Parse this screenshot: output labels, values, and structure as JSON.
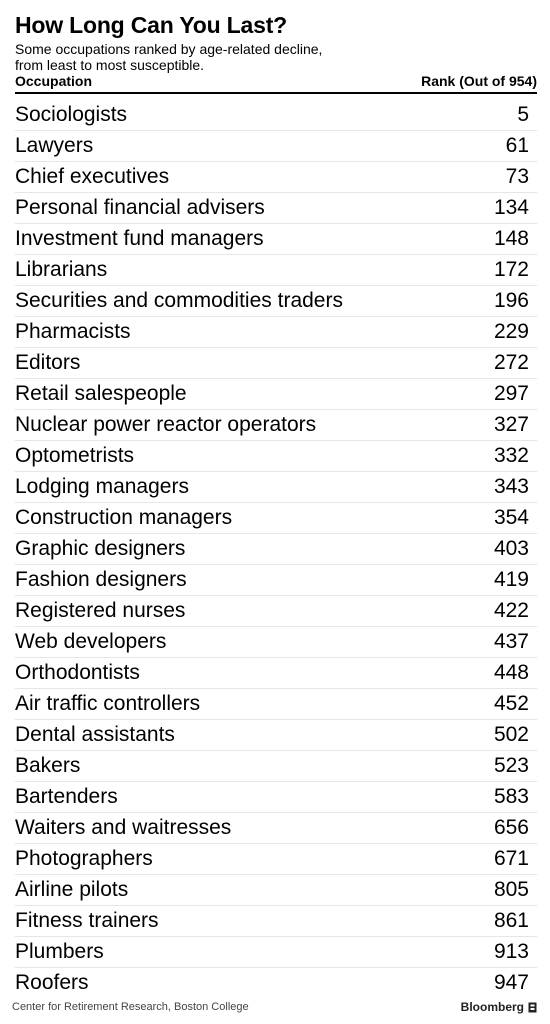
{
  "header": {
    "title": "How Long Can You Last?",
    "subtitle_line1": "Some occupations ranked by age-related decline,",
    "subtitle_line2": "from least to most susceptible.",
    "col_occupation": "Occupation",
    "col_rank": "Rank (Out of 954)"
  },
  "chart_data": {
    "type": "table",
    "title": "How Long Can You Last?",
    "subtitle": "Some occupations ranked by age-related decline, from least to most susceptible.",
    "columns": [
      "Occupation",
      "Rank (Out of 954)"
    ],
    "rows": [
      {
        "occupation": "Sociologists",
        "rank": "5"
      },
      {
        "occupation": "Lawyers",
        "rank": "61"
      },
      {
        "occupation": "Chief executives",
        "rank": "73"
      },
      {
        "occupation": "Personal financial advisers",
        "rank": "134"
      },
      {
        "occupation": "Investment fund managers",
        "rank": "148"
      },
      {
        "occupation": "Librarians",
        "rank": "172"
      },
      {
        "occupation": "Securities and commodities traders",
        "rank": "196"
      },
      {
        "occupation": "Pharmacists",
        "rank": "229"
      },
      {
        "occupation": "Editors",
        "rank": "272"
      },
      {
        "occupation": "Retail salespeople",
        "rank": "297"
      },
      {
        "occupation": "Nuclear power reactor operators",
        "rank": "327"
      },
      {
        "occupation": "Optometrists",
        "rank": "332"
      },
      {
        "occupation": "Lodging managers",
        "rank": "343"
      },
      {
        "occupation": "Construction managers",
        "rank": "354"
      },
      {
        "occupation": "Graphic designers",
        "rank": "403"
      },
      {
        "occupation": "Fashion designers",
        "rank": "419"
      },
      {
        "occupation": "Registered nurses",
        "rank": "422"
      },
      {
        "occupation": "Web developers",
        "rank": "437"
      },
      {
        "occupation": "Orthodontists",
        "rank": "448"
      },
      {
        "occupation": "Air traffic controllers",
        "rank": "452"
      },
      {
        "occupation": "Dental assistants",
        "rank": "502"
      },
      {
        "occupation": "Bakers",
        "rank": "523"
      },
      {
        "occupation": "Bartenders",
        "rank": "583"
      },
      {
        "occupation": "Waiters and waitresses",
        "rank": "656"
      },
      {
        "occupation": "Photographers",
        "rank": "671"
      },
      {
        "occupation": "Airline pilots",
        "rank": "805"
      },
      {
        "occupation": "Fitness trainers",
        "rank": "861"
      },
      {
        "occupation": "Plumbers",
        "rank": "913"
      },
      {
        "occupation": "Roofers",
        "rank": "947"
      }
    ]
  },
  "footer": {
    "source": "Center for Retirement Research, Boston College",
    "brand": "Bloomberg",
    "brand_icon": "bloomberg-logo-icon"
  }
}
